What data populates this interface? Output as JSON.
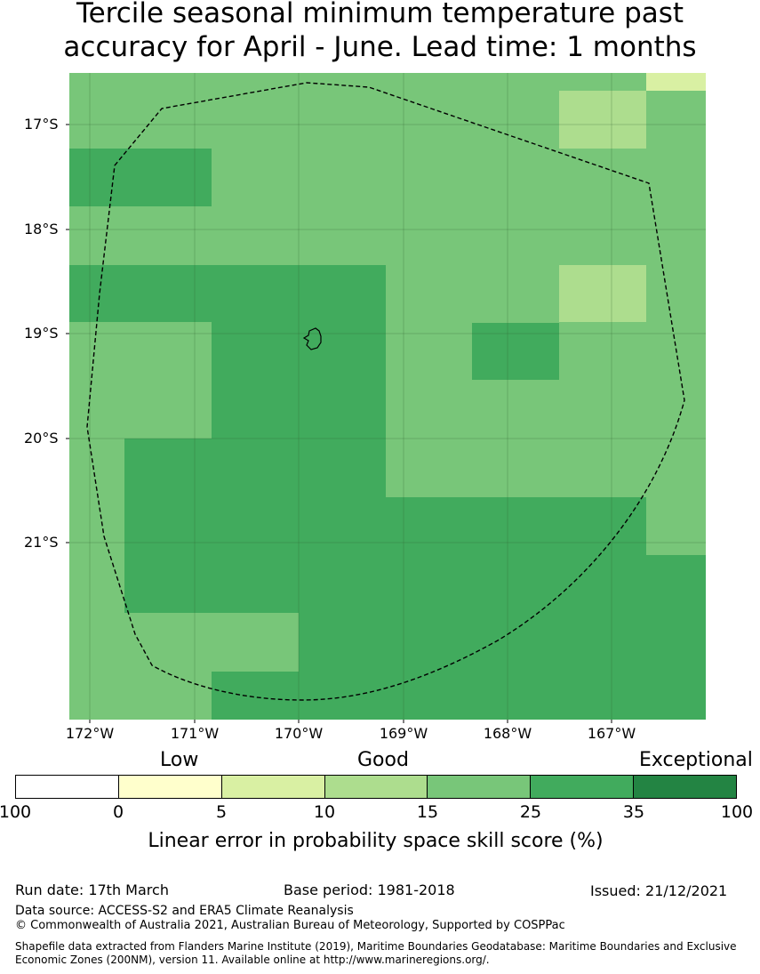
{
  "title": {
    "line1": "Tercile seasonal minimum temperature past",
    "line2": "accuracy for April - June. Lead time: 1 months"
  },
  "map": {
    "lat_labels": [
      "17°S",
      "18°S",
      "19°S",
      "20°S",
      "21°S"
    ],
    "lon_labels": [
      "172°W",
      "171°W",
      "170°W",
      "169°W",
      "168°W",
      "167°W"
    ],
    "categories": [
      "25-35",
      "15-25",
      "10-15",
      "5-10"
    ],
    "cell_grid": [
      "BBBBBBBBBBBBBBBBBBBBBBBBBBBBBBBBBBBBBBBBBBBBBBBBBBBBBBBBBBBBBBBBBBBBBBBBBBBBBBBBBBBBBBBBBBBBBBBBDDDDDDDDDD",
      "BBBBBBBBBBBBBBBBBBBBBBBBBBBBBBBBBBBBBBBBBBBBBBBBBBBBBBBBBBBBBBBBBBBBBBBBBBBBBBBBBBBBBBBBBBBBBBBBDDDDDDDDDD",
      "BBBBBBBBBBBBBBBBBBBBBBBBBBBBBBBBBBBBBBBBBBBBBBBBBBBBBBBBBBBBBBBBBBBBBBBBBBBBBBBBBBBBBBBBBBBBBBBBBBBBBBBBBBBB"
    ],
    "legend_colors": {
      "0-5": "#ffffcc",
      "5-10": "#d9f0a3",
      "10-15": "#addd8e",
      "15-25": "#78c679",
      "25-35": "#41ab5d",
      "35-100": "#238443"
    }
  },
  "legend": {
    "categories": [
      "Low",
      "Good",
      "Exceptional"
    ],
    "colors": [
      "#ffffff",
      "#ffffcc",
      "#d9f0a3",
      "#addd8e",
      "#78c679",
      "#41ab5d",
      "#238443"
    ],
    "ticks": [
      "100",
      "0",
      "5",
      "10",
      "15",
      "25",
      "35",
      "100"
    ],
    "label": "Linear error in probability space skill score (%)"
  },
  "footer": {
    "run_date": "Run date: 17th March",
    "base_period": "Base period: 1981-2018",
    "issued": "Issued: 21/12/2021",
    "data_source": "Data source: ACCESS-S2 and ERA5 Climate Reanalysis",
    "copyright": "© Commonwealth of Australia 2021, Australian Bureau of Meteorology, Supported by COSPPac",
    "shapefile": "Shapefile data extracted from Flanders Marine Institute (2019), Maritime Boundaries Geodatabase: Maritime Boundaries and Exclusive Economic Zones (200NM), version 11. Available online at http://www.marineregions.org/."
  }
}
